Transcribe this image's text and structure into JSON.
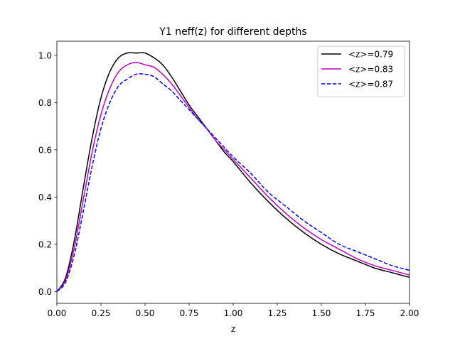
{
  "chart_data": {
    "type": "line",
    "title": "Y1 neff(z) for different depths",
    "xlabel": "z",
    "ylabel": "",
    "xlim": [
      0.0,
      2.0
    ],
    "ylim": [
      -0.05,
      1.06
    ],
    "grid": false,
    "legend_position": "top-right",
    "x_ticks": [
      0.0,
      0.25,
      0.5,
      0.75,
      1.0,
      1.25,
      1.5,
      1.75,
      2.0
    ],
    "x_tick_labels": [
      "0.00",
      "0.25",
      "0.50",
      "0.75",
      "1.00",
      "1.25",
      "1.50",
      "1.75",
      "2.00"
    ],
    "y_ticks": [
      0.0,
      0.2,
      0.4,
      0.6,
      0.8,
      1.0
    ],
    "y_tick_labels": [
      "0.0",
      "0.2",
      "0.4",
      "0.6",
      "0.8",
      "1.0"
    ],
    "x": [
      0.0,
      0.05,
      0.1,
      0.15,
      0.2,
      0.25,
      0.3,
      0.35,
      0.4,
      0.45,
      0.5,
      0.55,
      0.6,
      0.65,
      0.7,
      0.75,
      0.8,
      0.85,
      0.9,
      0.95,
      1.0,
      1.1,
      1.2,
      1.3,
      1.4,
      1.5,
      1.6,
      1.7,
      1.8,
      1.9,
      2.0
    ],
    "series": [
      {
        "name": "<z>=0.79",
        "color": "#000000",
        "dash": "solid",
        "values": [
          0.0,
          0.06,
          0.22,
          0.44,
          0.65,
          0.82,
          0.93,
          0.99,
          1.01,
          1.01,
          1.01,
          0.99,
          0.96,
          0.91,
          0.85,
          0.79,
          0.74,
          0.69,
          0.64,
          0.59,
          0.55,
          0.46,
          0.38,
          0.31,
          0.25,
          0.2,
          0.16,
          0.13,
          0.1,
          0.08,
          0.06
        ]
      },
      {
        "name": "<z>=0.83",
        "color": "#bf00bf",
        "dash": "solid",
        "values": [
          0.0,
          0.05,
          0.19,
          0.39,
          0.59,
          0.75,
          0.86,
          0.93,
          0.96,
          0.97,
          0.96,
          0.95,
          0.92,
          0.88,
          0.83,
          0.78,
          0.73,
          0.69,
          0.64,
          0.6,
          0.56,
          0.48,
          0.4,
          0.33,
          0.27,
          0.22,
          0.18,
          0.14,
          0.11,
          0.09,
          0.07
        ]
      },
      {
        "name": "<z>=0.87",
        "color": "#0000ff",
        "dash": "dashed",
        "values": [
          0.0,
          0.04,
          0.16,
          0.34,
          0.53,
          0.69,
          0.8,
          0.87,
          0.9,
          0.92,
          0.92,
          0.91,
          0.88,
          0.85,
          0.81,
          0.77,
          0.73,
          0.69,
          0.65,
          0.61,
          0.57,
          0.5,
          0.42,
          0.36,
          0.3,
          0.25,
          0.2,
          0.17,
          0.14,
          0.11,
          0.09
        ]
      }
    ]
  }
}
